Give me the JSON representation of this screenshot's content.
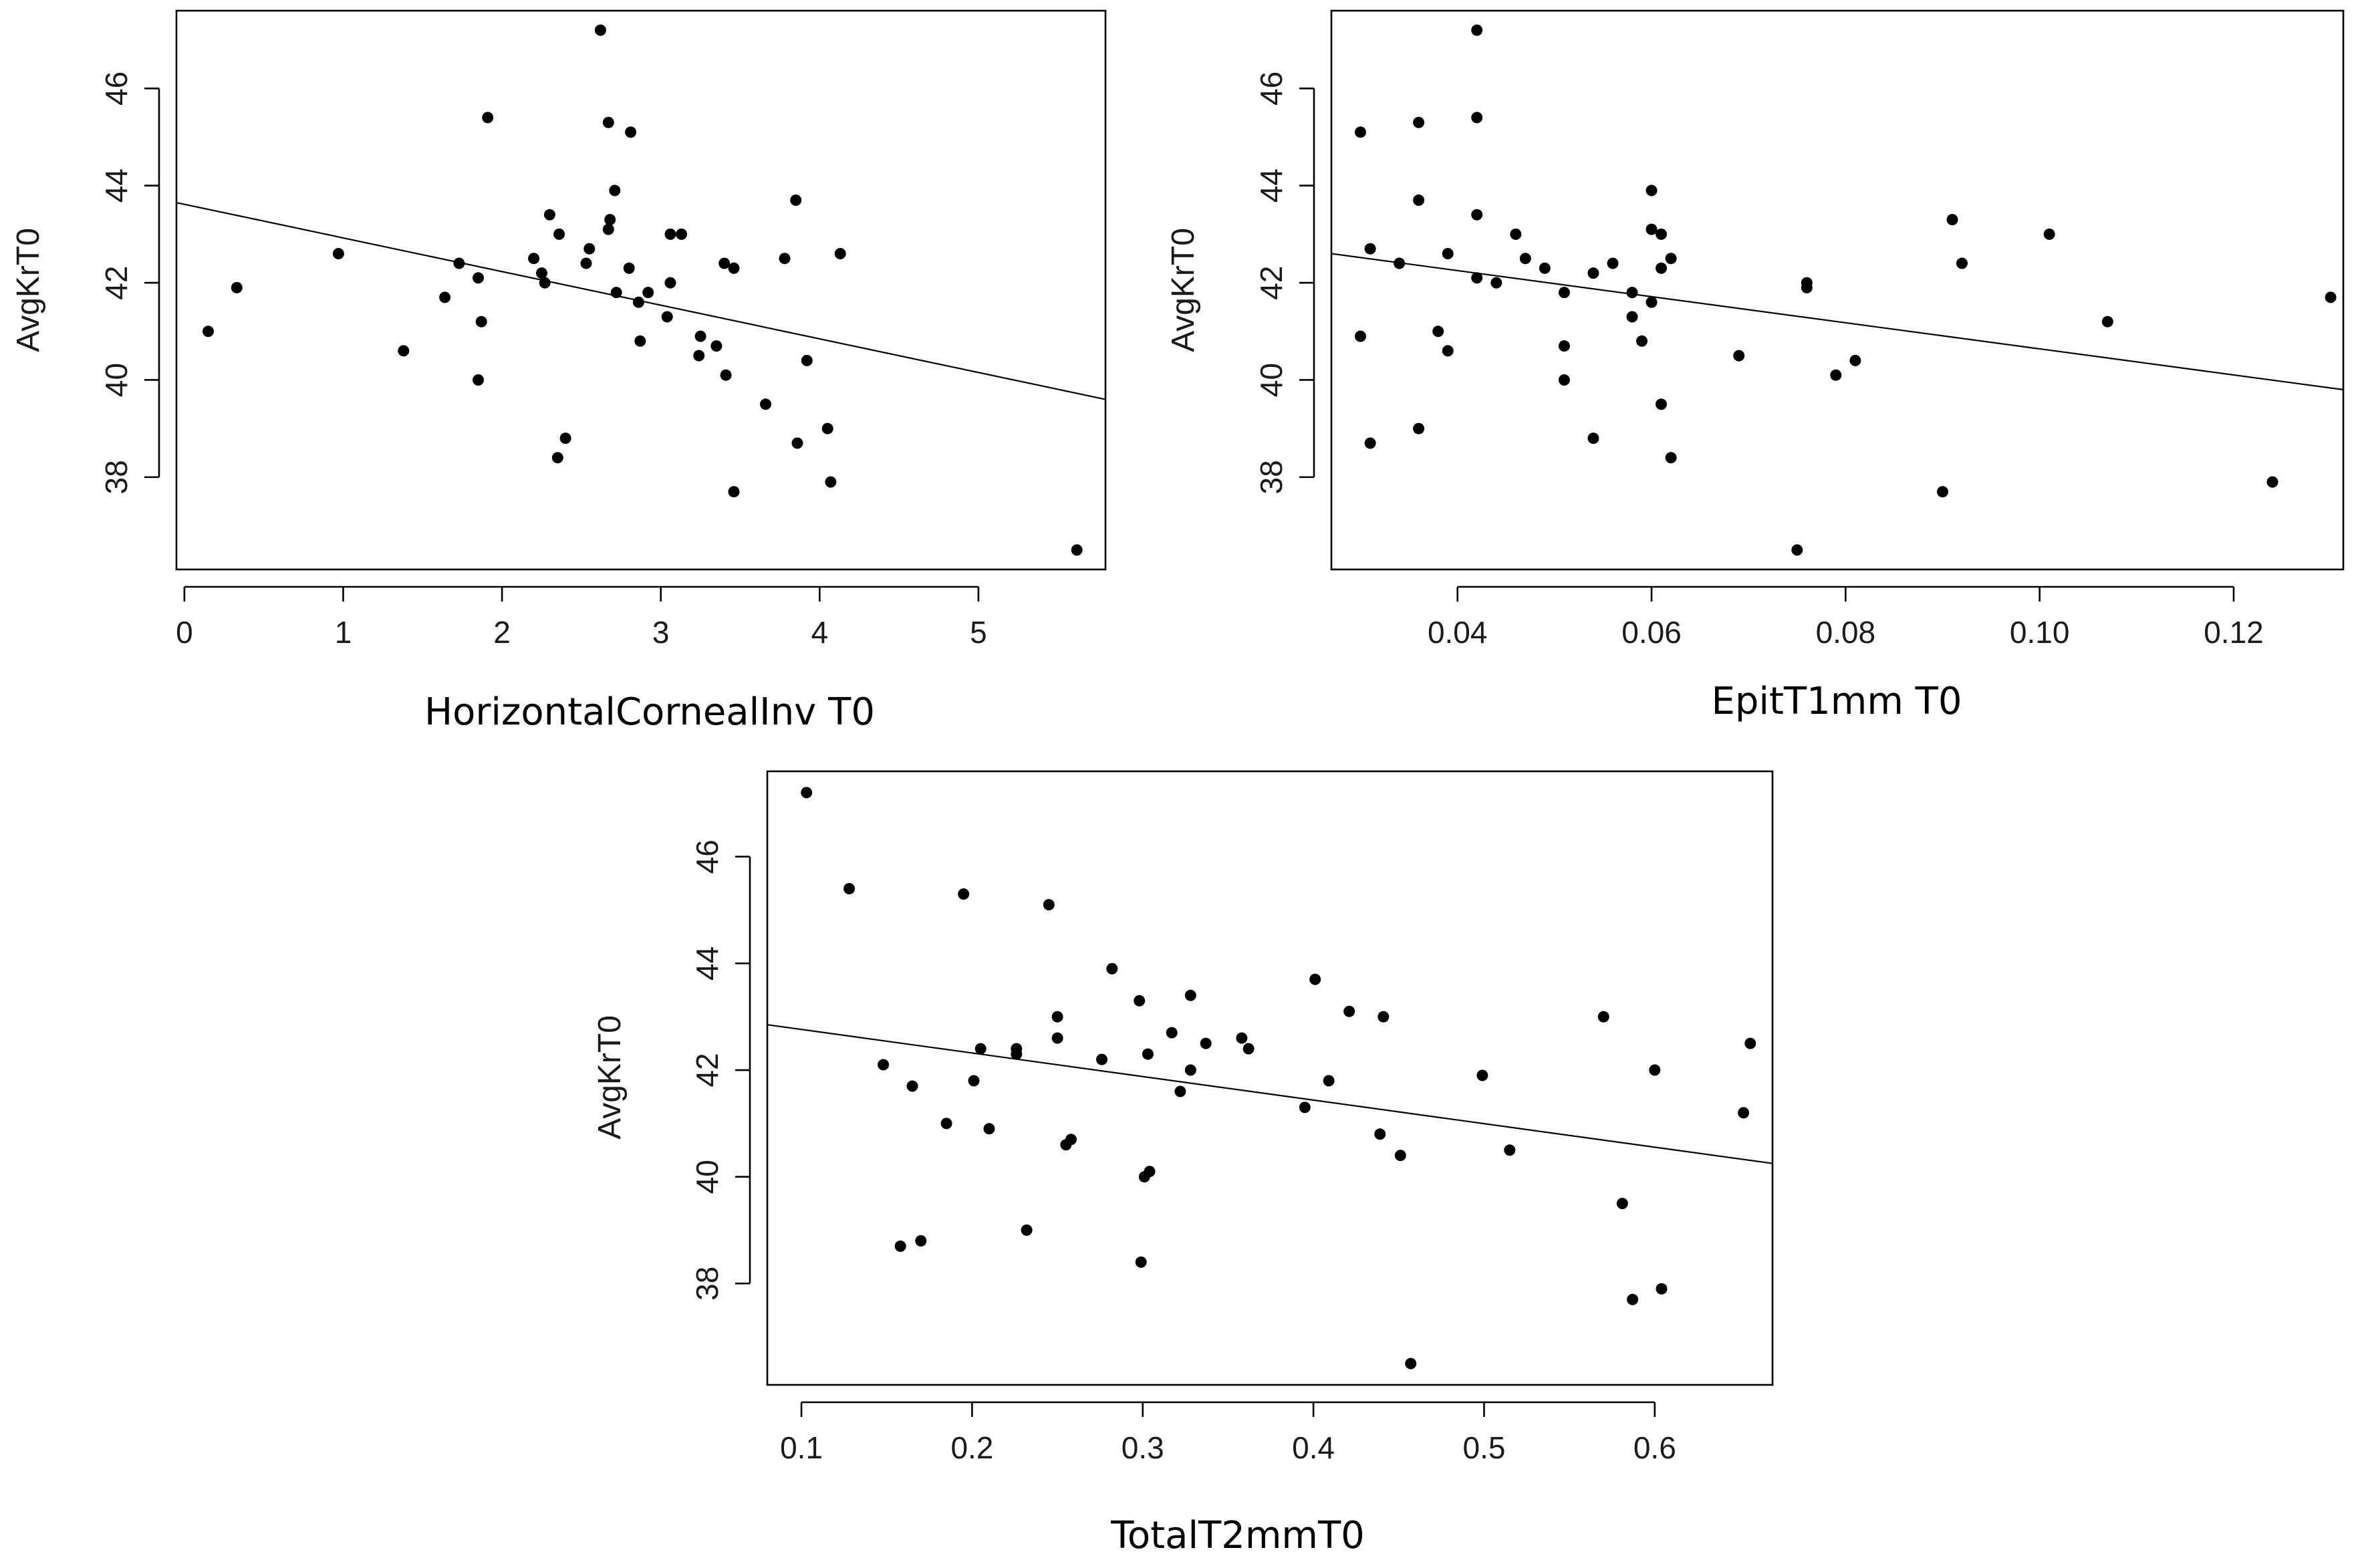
{
  "chart_data": [
    {
      "type": "scatter",
      "id": "p1",
      "xlabel": "HorizontalCornealInv T0",
      "ylabel": "AvgKrT0",
      "xlim": [
        -0.05,
        5.8
      ],
      "ylim": [
        36.1,
        47.6
      ],
      "xticks": [
        0,
        1,
        2,
        3,
        4,
        5
      ],
      "xtick_labels": [
        "0",
        "1",
        "2",
        "3",
        "4",
        "5"
      ],
      "yticks": [
        38,
        40,
        42,
        44,
        46
      ],
      "ytick_labels": [
        "38",
        "40",
        "42",
        "44",
        "46"
      ],
      "fit_line": {
        "x": [
          -0.05,
          5.8
        ],
        "y": [
          43.65,
          39.6
        ]
      },
      "points": [
        [
          0.15,
          41.0
        ],
        [
          0.33,
          41.9
        ],
        [
          0.97,
          42.6
        ],
        [
          1.38,
          40.6
        ],
        [
          1.64,
          41.7
        ],
        [
          1.73,
          42.4
        ],
        [
          1.85,
          42.1
        ],
        [
          1.85,
          40.0
        ],
        [
          1.87,
          41.2
        ],
        [
          1.91,
          45.4
        ],
        [
          2.2,
          42.5
        ],
        [
          2.25,
          42.2
        ],
        [
          2.27,
          42.0
        ],
        [
          2.3,
          43.4
        ],
        [
          2.36,
          43.0
        ],
        [
          2.35,
          38.4
        ],
        [
          2.4,
          38.8
        ],
        [
          2.53,
          42.4
        ],
        [
          2.55,
          42.7
        ],
        [
          2.62,
          47.2
        ],
        [
          2.67,
          45.3
        ],
        [
          2.67,
          43.1
        ],
        [
          2.68,
          43.3
        ],
        [
          2.71,
          43.9
        ],
        [
          2.72,
          41.8
        ],
        [
          2.8,
          42.3
        ],
        [
          2.81,
          45.1
        ],
        [
          2.86,
          41.6
        ],
        [
          2.87,
          40.8
        ],
        [
          2.92,
          41.8
        ],
        [
          3.04,
          41.3
        ],
        [
          3.06,
          42.0
        ],
        [
          3.06,
          43.0
        ],
        [
          3.13,
          43.0
        ],
        [
          3.25,
          40.9
        ],
        [
          3.24,
          40.5
        ],
        [
          3.35,
          40.7
        ],
        [
          3.4,
          42.4
        ],
        [
          3.41,
          40.1
        ],
        [
          3.46,
          42.3
        ],
        [
          3.46,
          37.7
        ],
        [
          3.66,
          39.5
        ],
        [
          3.78,
          42.5
        ],
        [
          3.85,
          43.7
        ],
        [
          3.86,
          38.7
        ],
        [
          3.92,
          40.4
        ],
        [
          4.05,
          39.0
        ],
        [
          4.07,
          37.9
        ],
        [
          4.13,
          42.6
        ],
        [
          5.62,
          36.5
        ]
      ]
    },
    {
      "type": "scatter",
      "id": "p2",
      "xlabel": "EpitT1mm T0",
      "ylabel": "AvgKrT0",
      "xlim": [
        0.027,
        0.1313
      ],
      "ylim": [
        36.1,
        47.6
      ],
      "xticks": [
        0.04,
        0.06,
        0.08,
        0.1,
        0.12
      ],
      "xtick_labels": [
        "0.04",
        "0.06",
        "0.08",
        "0.10",
        "0.12"
      ],
      "yticks": [
        38,
        40,
        42,
        44,
        46
      ],
      "ytick_labels": [
        "38",
        "40",
        "42",
        "44",
        "46"
      ],
      "fit_line": {
        "x": [
          0.027,
          0.1313
        ],
        "y": [
          42.6,
          39.8
        ]
      },
      "points": [
        [
          0.03,
          45.1
        ],
        [
          0.03,
          40.9
        ],
        [
          0.031,
          42.7
        ],
        [
          0.031,
          38.7
        ],
        [
          0.034,
          42.4
        ],
        [
          0.036,
          45.3
        ],
        [
          0.036,
          43.7
        ],
        [
          0.036,
          39.0
        ],
        [
          0.038,
          41.0
        ],
        [
          0.039,
          42.6
        ],
        [
          0.039,
          40.6
        ],
        [
          0.042,
          47.2
        ],
        [
          0.042,
          45.4
        ],
        [
          0.042,
          43.4
        ],
        [
          0.042,
          42.1
        ],
        [
          0.044,
          42.0
        ],
        [
          0.046,
          43.0
        ],
        [
          0.047,
          42.5
        ],
        [
          0.049,
          42.3
        ],
        [
          0.051,
          41.8
        ],
        [
          0.051,
          40.7
        ],
        [
          0.051,
          40.0
        ],
        [
          0.054,
          42.2
        ],
        [
          0.054,
          38.8
        ],
        [
          0.056,
          42.4
        ],
        [
          0.058,
          41.8
        ],
        [
          0.058,
          41.3
        ],
        [
          0.059,
          40.8
        ],
        [
          0.06,
          43.9
        ],
        [
          0.06,
          43.1
        ],
        [
          0.06,
          41.6
        ],
        [
          0.061,
          43.0
        ],
        [
          0.061,
          42.3
        ],
        [
          0.061,
          39.5
        ],
        [
          0.062,
          42.5
        ],
        [
          0.062,
          38.4
        ],
        [
          0.069,
          40.5
        ],
        [
          0.075,
          36.5
        ],
        [
          0.076,
          42.0
        ],
        [
          0.076,
          41.9
        ],
        [
          0.079,
          40.1
        ],
        [
          0.081,
          40.4
        ],
        [
          0.09,
          37.7
        ],
        [
          0.091,
          43.3
        ],
        [
          0.092,
          42.4
        ],
        [
          0.101,
          43.0
        ],
        [
          0.107,
          41.2
        ],
        [
          0.124,
          37.9
        ],
        [
          0.13,
          41.7
        ]
      ]
    },
    {
      "type": "scatter",
      "id": "p3",
      "xlabel": "TotalT2mmT0",
      "ylabel": "AvgKrT0",
      "xlim": [
        0.08,
        0.669
      ],
      "ylim": [
        36.1,
        47.6
      ],
      "xticks": [
        0.1,
        0.2,
        0.3,
        0.4,
        0.5,
        0.6
      ],
      "xtick_labels": [
        "0.1",
        "0.2",
        "0.3",
        "0.4",
        "0.5",
        "0.6"
      ],
      "yticks": [
        38,
        40,
        42,
        44,
        46
      ],
      "ytick_labels": [
        "38",
        "40",
        "42",
        "44",
        "46"
      ],
      "fit_line": {
        "x": [
          0.08,
          0.669
        ],
        "y": [
          42.85,
          40.25
        ]
      },
      "points": [
        [
          0.103,
          47.2
        ],
        [
          0.128,
          45.4
        ],
        [
          0.148,
          42.1
        ],
        [
          0.158,
          38.7
        ],
        [
          0.165,
          41.7
        ],
        [
          0.17,
          38.8
        ],
        [
          0.185,
          41.0
        ],
        [
          0.195,
          45.3
        ],
        [
          0.201,
          41.8
        ],
        [
          0.205,
          42.4
        ],
        [
          0.21,
          40.9
        ],
        [
          0.226,
          42.4
        ],
        [
          0.226,
          42.3
        ],
        [
          0.232,
          39.0
        ],
        [
          0.245,
          45.1
        ],
        [
          0.25,
          42.6
        ],
        [
          0.25,
          43.0
        ],
        [
          0.255,
          40.6
        ],
        [
          0.258,
          40.7
        ],
        [
          0.276,
          42.2
        ],
        [
          0.282,
          43.9
        ],
        [
          0.298,
          43.3
        ],
        [
          0.299,
          38.4
        ],
        [
          0.301,
          40.0
        ],
        [
          0.303,
          42.3
        ],
        [
          0.304,
          40.1
        ],
        [
          0.317,
          42.7
        ],
        [
          0.322,
          41.6
        ],
        [
          0.328,
          43.4
        ],
        [
          0.328,
          42.0
        ],
        [
          0.337,
          42.5
        ],
        [
          0.358,
          42.6
        ],
        [
          0.362,
          42.4
        ],
        [
          0.395,
          41.3
        ],
        [
          0.401,
          43.7
        ],
        [
          0.409,
          41.8
        ],
        [
          0.421,
          43.1
        ],
        [
          0.439,
          40.8
        ],
        [
          0.441,
          43.0
        ],
        [
          0.451,
          40.4
        ],
        [
          0.457,
          36.5
        ],
        [
          0.499,
          41.9
        ],
        [
          0.515,
          40.5
        ],
        [
          0.57,
          43.0
        ],
        [
          0.581,
          39.5
        ],
        [
          0.587,
          37.7
        ],
        [
          0.6,
          42.0
        ],
        [
          0.604,
          37.9
        ],
        [
          0.652,
          41.2
        ],
        [
          0.656,
          42.5
        ]
      ]
    }
  ]
}
